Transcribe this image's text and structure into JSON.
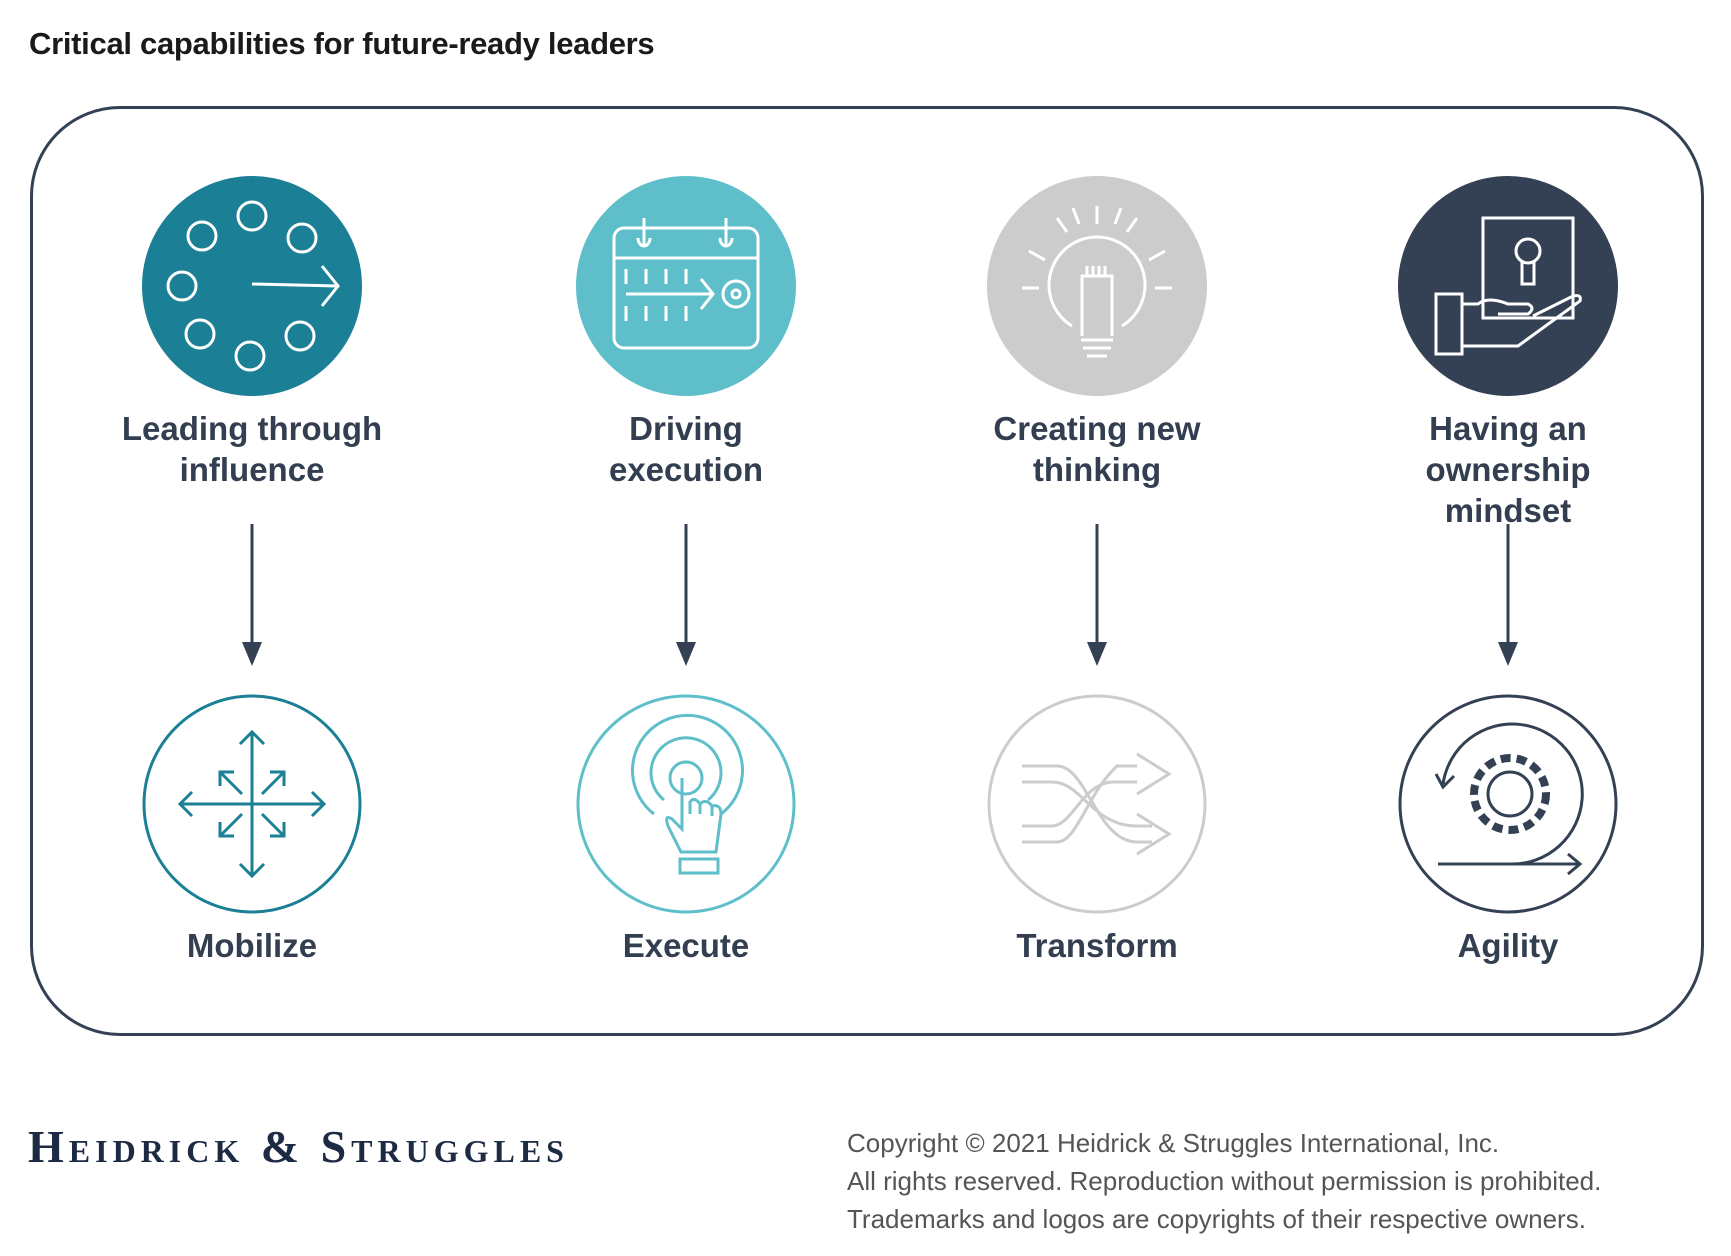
{
  "title": "Critical capabilities for future-ready leaders",
  "colors": {
    "teal": "#1b7f95",
    "light_teal": "#5ebfca",
    "gray": "#cccccc",
    "navy": "#344154"
  },
  "columns": [
    {
      "capability": "Leading through influence",
      "capability_lines": [
        "Leading through",
        "influence"
      ],
      "outcome": "Mobilize",
      "top_icon": "people-circle-arrow-icon",
      "bottom_icon": "expand-arrows-icon"
    },
    {
      "capability": "Driving execution",
      "capability_lines": [
        "Driving",
        "execution"
      ],
      "outcome": "Execute",
      "top_icon": "calendar-target-icon",
      "bottom_icon": "touch-press-icon"
    },
    {
      "capability": "Creating new thinking",
      "capability_lines": [
        "Creating new",
        "thinking"
      ],
      "outcome": "Transform",
      "top_icon": "lightbulb-icon",
      "bottom_icon": "shuffle-icon"
    },
    {
      "capability": "Having an ownership mindset",
      "capability_lines": [
        "Having an",
        "ownership",
        "mindset"
      ],
      "outcome": "Agility",
      "top_icon": "hand-keyhole-icon",
      "bottom_icon": "gear-cycle-icon"
    }
  ],
  "footer": {
    "logo": "Heidrick & Struggles",
    "copyright_lines": [
      "Copyright © 2021 Heidrick & Struggles International, Inc.",
      "All rights reserved. Reproduction without permission is prohibited.",
      "Trademarks and logos are copyrights of their respective owners."
    ]
  }
}
